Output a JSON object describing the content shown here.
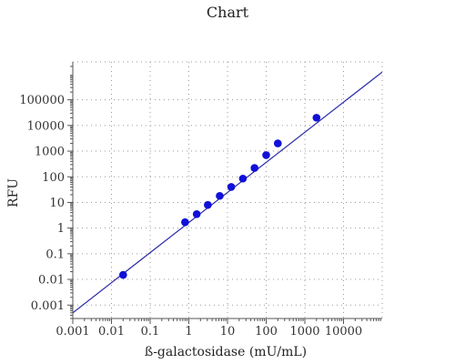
{
  "chart_data": {
    "type": "scatter",
    "title": "Chart",
    "xlabel": "ß-galactosidase (mU/mL)",
    "ylabel": "RFU",
    "x_scale": "log",
    "y_scale": "log",
    "xlim": [
      0.001,
      100000
    ],
    "ylim": [
      0.0003,
      3000000
    ],
    "grid": true,
    "legend": "none",
    "x_ticks": [
      {
        "value": 0.001,
        "label": "0.001"
      },
      {
        "value": 0.01,
        "label": "0.01"
      },
      {
        "value": 0.1,
        "label": "0.1"
      },
      {
        "value": 1,
        "label": "1"
      },
      {
        "value": 10,
        "label": "10"
      },
      {
        "value": 100,
        "label": "100"
      },
      {
        "value": 1000,
        "label": "1000"
      },
      {
        "value": 10000,
        "label": "10000"
      }
    ],
    "y_ticks": [
      {
        "value": 0.001,
        "label": "0.001"
      },
      {
        "value": 0.01,
        "label": "0.01"
      },
      {
        "value": 0.1,
        "label": "0.1"
      },
      {
        "value": 1,
        "label": "1"
      },
      {
        "value": 10,
        "label": "10"
      },
      {
        "value": 100,
        "label": "100"
      },
      {
        "value": 1000,
        "label": "1000"
      },
      {
        "value": 10000,
        "label": "10000"
      },
      {
        "value": 100000,
        "label": "100000"
      }
    ],
    "points": [
      {
        "x": 0.02,
        "y": 0.015
      },
      {
        "x": 0.8,
        "y": 1.7
      },
      {
        "x": 1.6,
        "y": 3.5
      },
      {
        "x": 3.1,
        "y": 8
      },
      {
        "x": 6.3,
        "y": 18
      },
      {
        "x": 12.5,
        "y": 40
      },
      {
        "x": 25,
        "y": 85
      },
      {
        "x": 50,
        "y": 220
      },
      {
        "x": 100,
        "y": 700
      },
      {
        "x": 200,
        "y": 2000
      },
      {
        "x": 2000,
        "y": 20000
      }
    ],
    "fit_line": {
      "x": [
        0.001,
        100000
      ],
      "y": [
        0.0005,
        1200000
      ]
    },
    "colors": {
      "points": "#1010d8",
      "fit_line": "#2a2aa8"
    }
  }
}
